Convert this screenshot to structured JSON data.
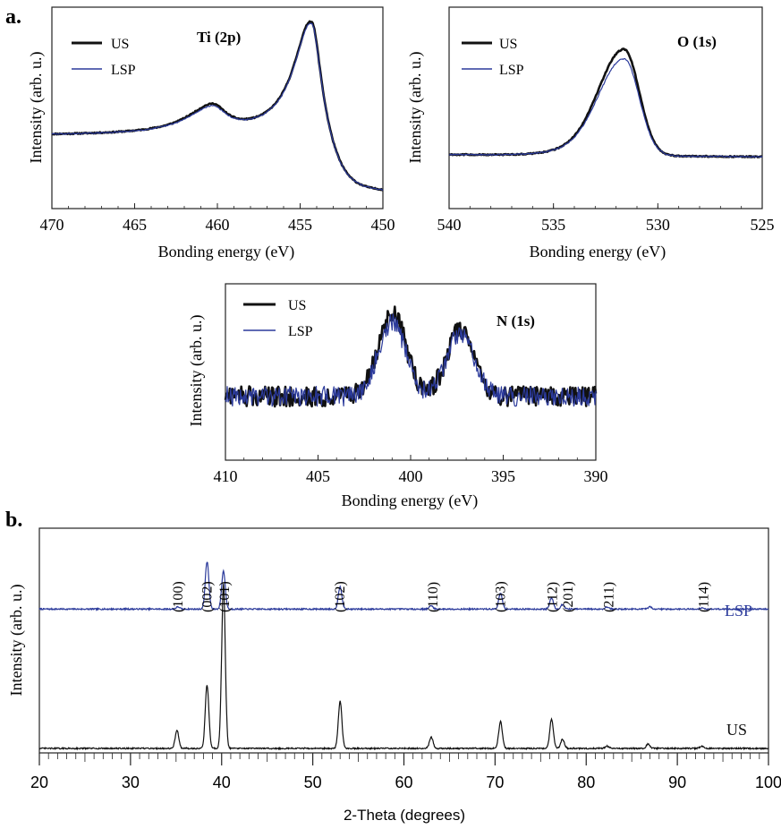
{
  "figure": {
    "panel_a_label": "a.",
    "panel_b_label": "b.",
    "colors": {
      "US": "#111111",
      "LSP": "#2b3a9b",
      "frame": "#222222"
    }
  },
  "chart_data": [
    {
      "id": "ti2p",
      "type": "line",
      "title": "Ti (2p)",
      "xlabel": "Bonding energy (eV)",
      "ylabel": "Intensity (arb. u.)",
      "xlim": [
        470,
        450
      ],
      "ylim": [
        0,
        1.05
      ],
      "xticks": [
        "470",
        "465",
        "460",
        "455",
        "450"
      ],
      "legend": [
        "US",
        "LSP"
      ],
      "legend_position": "top-left",
      "peaks": [
        {
          "center": 460.3,
          "US_height": 0.52,
          "LSP_height": 0.51
        },
        {
          "center": 454.3,
          "US_height": 0.97,
          "LSP_height": 0.96
        }
      ],
      "baseline_low_energy": 0.08,
      "baseline_high_energy": 0.38
    },
    {
      "id": "o1s",
      "type": "line",
      "title": "O (1s)",
      "xlabel": "Bonding energy (eV)",
      "ylabel": "Intensity (arb. u.)",
      "xlim": [
        540,
        525
      ],
      "ylim": [
        0,
        1.05
      ],
      "xticks": [
        "540",
        "535",
        "530",
        "525"
      ],
      "legend": [
        "US",
        "LSP"
      ],
      "legend_position": "top-left",
      "peaks": [
        {
          "center": 531.6,
          "US_height": 0.83,
          "LSP_height": 0.78
        }
      ],
      "baseline": 0.27
    },
    {
      "id": "n1s",
      "type": "line",
      "title": "N (1s)",
      "xlabel": "Bonding energy (eV)",
      "ylabel": "Intensity (arb. u.)",
      "xlim": [
        410,
        390
      ],
      "ylim": [
        0,
        1.05
      ],
      "xticks": [
        "410",
        "405",
        "400",
        "395",
        "390"
      ],
      "legend": [
        "US",
        "LSP"
      ],
      "legend_position": "top-left",
      "peaks": [
        {
          "center": 401.0,
          "US_height": 0.88,
          "LSP_height": 0.82
        },
        {
          "center": 397.3,
          "US_height": 0.78,
          "LSP_height": 0.76
        }
      ],
      "baseline": 0.38,
      "noise": 0.06
    },
    {
      "id": "xrd",
      "type": "line",
      "xlabel": "2-Theta  (degrees)",
      "ylabel": "Intensity (arb. u.)",
      "xlim": [
        20,
        100
      ],
      "xticks": [
        "20",
        "30",
        "40",
        "50",
        "60",
        "70",
        "80",
        "90",
        "100"
      ],
      "grid": false,
      "series": [
        {
          "name": "LSP",
          "offset": 0.62,
          "peaks": [
            [
              35.2,
              0.01
            ],
            [
              38.4,
              0.21
            ],
            [
              40.2,
              0.17
            ],
            [
              53.0,
              0.1
            ],
            [
              63.0,
              0.015
            ],
            [
              70.6,
              0.07
            ],
            [
              76.2,
              0.05
            ],
            [
              77.4,
              0.02
            ],
            [
              82.3,
              0.01
            ],
            [
              87.0,
              0.01
            ],
            [
              92.7,
              0.005
            ]
          ]
        },
        {
          "name": "US",
          "offset": 0.0,
          "peaks": [
            [
              35.1,
              0.08
            ],
            [
              38.4,
              0.28
            ],
            [
              40.2,
              0.73
            ],
            [
              53.0,
              0.21
            ],
            [
              63.0,
              0.05
            ],
            [
              70.6,
              0.12
            ],
            [
              76.2,
              0.13
            ],
            [
              77.4,
              0.04
            ],
            [
              82.3,
              0.01
            ],
            [
              86.8,
              0.02
            ],
            [
              92.7,
              0.01
            ]
          ]
        }
      ],
      "annotations": [
        {
          "text": "(100)",
          "x": 35.2
        },
        {
          "text": "(002)",
          "x": 38.4
        },
        {
          "text": "(101)",
          "x": 40.3
        },
        {
          "text": "(102)",
          "x": 53.0
        },
        {
          "text": "(110)",
          "x": 63.2
        },
        {
          "text": "(103)",
          "x": 70.6
        },
        {
          "text": "(112)",
          "x": 76.3
        },
        {
          "text": "(201)",
          "x": 78.0
        },
        {
          "text": "(211)",
          "x": 82.5
        },
        {
          "text": "(114)",
          "x": 92.9
        }
      ]
    }
  ]
}
